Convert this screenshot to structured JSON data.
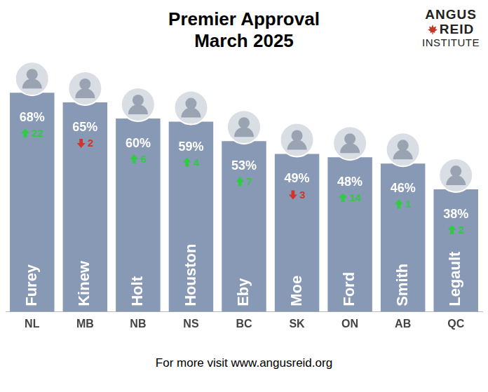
{
  "chart_data": {
    "type": "bar",
    "title": "Premier Approval",
    "subtitle": "March 2025",
    "categories": [
      "NL",
      "MB",
      "NB",
      "NS",
      "BC",
      "SK",
      "ON",
      "AB",
      "QC"
    ],
    "bar_labels": [
      "Furey",
      "Kinew",
      "Holt",
      "Houston",
      "Eby",
      "Moe",
      "Ford",
      "Smith",
      "Legault"
    ],
    "values": [
      68,
      65,
      60,
      59,
      53,
      49,
      48,
      46,
      38
    ],
    "value_labels": [
      "68%",
      "65%",
      "60%",
      "59%",
      "53%",
      "49%",
      "48%",
      "46%",
      "38%"
    ],
    "changes": [
      22,
      -2,
      6,
      4,
      7,
      -3,
      14,
      1,
      2
    ],
    "change_labels": [
      "22",
      "2",
      "6",
      "4",
      "7",
      "3",
      "14",
      "1",
      "2"
    ],
    "color": "#8899b5",
    "ylim": [
      0,
      75
    ],
    "grid": false,
    "data_labels": true,
    "tick_labels": "x",
    "logo_text": [
      "ANGUS",
      "REID",
      "INSTITUTE"
    ],
    "footer": "For more visit www.angusreid.org"
  }
}
